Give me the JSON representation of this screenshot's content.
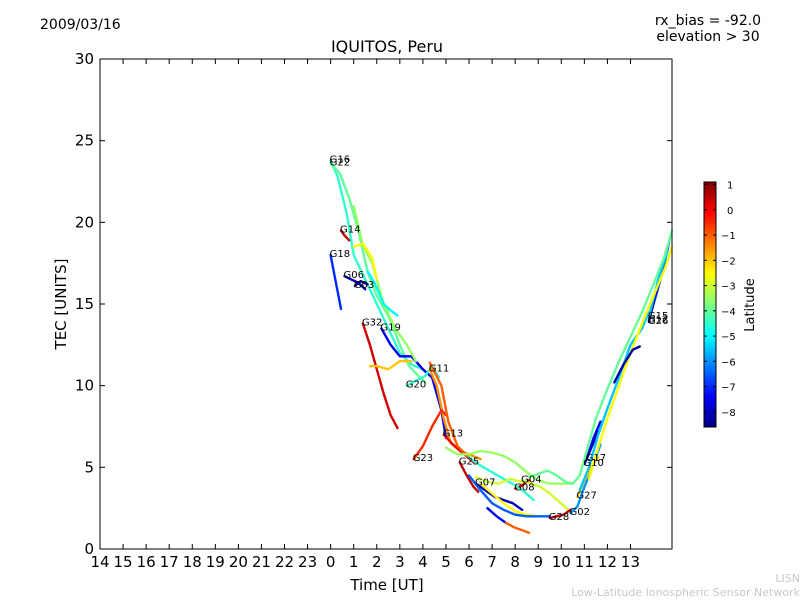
{
  "header": {
    "date": "2009/03/16",
    "rx_bias": "rx_bias = -92.0",
    "elevation": "elevation > 30"
  },
  "footer": {
    "line1": "LISN",
    "line2": "Low-Latitude Ionospheric Sensor Network"
  },
  "chart_data": {
    "type": "line",
    "title": "IQUITOS, Peru",
    "xlabel": "Time [UT]",
    "ylabel": "TEC [UNITS]",
    "x_tick_labels": [
      "14",
      "15",
      "16",
      "17",
      "18",
      "19",
      "20",
      "21",
      "22",
      "23",
      "0",
      "1",
      "2",
      "3",
      "4",
      "5",
      "6",
      "7",
      "8",
      "9",
      "10",
      "11",
      "12",
      "13"
    ],
    "xlim": [
      -10,
      14.8
    ],
    "ylim": [
      0,
      30
    ],
    "y_ticks": [
      0,
      5,
      10,
      15,
      20,
      25,
      30
    ],
    "grid": false,
    "colorbar": {
      "label": "Latitude",
      "range": [
        -8.6,
        1.1
      ],
      "ticks": [
        1,
        0,
        -1,
        -2,
        -3,
        -4,
        -5,
        -6,
        -7,
        -8
      ],
      "colormap": [
        "#00007f",
        "#0000ff",
        "#007fff",
        "#00ffff",
        "#7fff7f",
        "#ffff00",
        "#ff7f00",
        "#ff0000",
        "#7f0000"
      ]
    },
    "series": [
      {
        "name": "G16",
        "lat": -4.5,
        "points": [
          [
            0.0,
            23.8
          ],
          [
            0.3,
            22.8
          ],
          [
            0.7,
            20.5
          ],
          [
            1.0,
            18.0
          ],
          [
            1.5,
            16.5
          ],
          [
            2.0,
            15.0
          ],
          [
            2.5,
            13.5
          ],
          [
            3.0,
            12.0
          ],
          [
            3.5,
            11.3
          ],
          [
            4.0,
            11.0
          ]
        ]
      },
      {
        "name": "G22",
        "lat": -4.0,
        "points": [
          [
            0.0,
            23.6
          ],
          [
            0.4,
            23.0
          ],
          [
            0.8,
            21.5
          ],
          [
            1.2,
            19.5
          ],
          [
            1.6,
            17.0
          ],
          [
            2.0,
            15.5
          ],
          [
            2.6,
            14.0
          ],
          [
            3.0,
            12.5
          ],
          [
            3.4,
            11.2
          ],
          [
            3.8,
            10.6
          ],
          [
            4.1,
            10.2
          ]
        ]
      },
      {
        "name": "G14",
        "lat": 0.5,
        "points": [
          [
            0.45,
            19.5
          ],
          [
            0.6,
            19.2
          ],
          [
            0.8,
            18.9
          ]
        ]
      },
      {
        "name": "G18",
        "lat": -7.0,
        "points": [
          [
            0.0,
            18.0
          ],
          [
            0.2,
            16.5
          ],
          [
            0.45,
            14.7
          ]
        ]
      },
      {
        "name": "G06",
        "lat": -8.0,
        "points": [
          [
            0.6,
            16.7
          ],
          [
            0.9,
            16.5
          ],
          [
            1.2,
            16.3
          ],
          [
            1.5,
            15.9
          ]
        ]
      },
      {
        "name": "G03",
        "lat": -8.3,
        "points": [
          [
            1.05,
            16.1
          ],
          [
            1.3,
            16.4
          ],
          [
            1.6,
            16.2
          ]
        ]
      },
      {
        "name": "G32",
        "lat": 0.3,
        "points": [
          [
            1.4,
            13.8
          ],
          [
            1.7,
            12.5
          ],
          [
            2.0,
            11.0
          ],
          [
            2.3,
            9.5
          ],
          [
            2.6,
            8.2
          ],
          [
            2.9,
            7.4
          ]
        ]
      },
      {
        "name": "G19",
        "lat": -7.5,
        "points": [
          [
            2.2,
            13.5
          ],
          [
            2.6,
            12.5
          ],
          [
            3.0,
            11.8
          ],
          [
            3.5,
            11.8
          ],
          [
            4.0,
            11.0
          ],
          [
            4.4,
            10.5
          ],
          [
            4.8,
            8.5
          ],
          [
            5.0,
            6.8
          ]
        ]
      },
      {
        "name": "G20",
        "lat": -4.5,
        "points": [
          [
            3.3,
            10.0
          ],
          [
            3.7,
            10.3
          ],
          [
            4.1,
            10.6
          ],
          [
            4.4,
            11.2
          ],
          [
            4.7,
            10.5
          ]
        ]
      },
      {
        "name": "G11",
        "lat": -1.5,
        "points": [
          [
            4.3,
            11.0
          ],
          [
            4.6,
            10.0
          ],
          [
            4.9,
            8.0
          ],
          [
            5.2,
            6.5
          ],
          [
            5.6,
            6.0
          ],
          [
            6.0,
            5.8
          ],
          [
            6.5,
            5.5
          ]
        ]
      },
      {
        "name": "G13",
        "lat": 0.0,
        "points": [
          [
            4.9,
            7.0
          ],
          [
            5.3,
            6.4
          ],
          [
            5.8,
            5.8
          ],
          [
            6.2,
            5.3
          ]
        ]
      },
      {
        "name": "G23",
        "lat": -0.5,
        "points": [
          [
            3.6,
            5.5
          ],
          [
            4.0,
            6.3
          ],
          [
            4.4,
            7.5
          ],
          [
            4.8,
            8.5
          ],
          [
            5.0,
            8.2
          ]
        ]
      },
      {
        "name": "G25",
        "lat": 0.5,
        "points": [
          [
            5.6,
            5.3
          ],
          [
            5.9,
            4.5
          ],
          [
            6.2,
            3.8
          ],
          [
            6.4,
            3.5
          ]
        ]
      },
      {
        "name": "G07",
        "lat": -8.0,
        "points": [
          [
            6.3,
            4.0
          ],
          [
            6.7,
            3.6
          ],
          [
            7.1,
            3.2
          ],
          [
            7.5,
            3.0
          ],
          [
            7.9,
            2.8
          ],
          [
            8.3,
            2.4
          ]
        ]
      },
      {
        "name": "G08",
        "lat": 0.5,
        "points": [
          [
            8.0,
            3.7
          ],
          [
            8.3,
            3.9
          ],
          [
            8.6,
            4.2
          ]
        ]
      },
      {
        "name": "G04",
        "lat": -3.0,
        "points": [
          [
            8.3,
            4.2
          ],
          [
            8.7,
            4.0
          ],
          [
            9.1,
            3.8
          ],
          [
            9.5,
            3.4
          ],
          [
            9.9,
            2.9
          ],
          [
            10.3,
            2.4
          ]
        ]
      },
      {
        "name": "G28",
        "lat": 0.5,
        "points": [
          [
            9.5,
            1.9
          ],
          [
            9.8,
            2.0
          ],
          [
            10.1,
            2.1
          ],
          [
            10.4,
            2.4
          ]
        ]
      },
      {
        "name": "G02",
        "lat": -6.0,
        "points": [
          [
            10.4,
            2.2
          ],
          [
            10.7,
            2.6
          ],
          [
            11.0,
            3.8
          ],
          [
            11.4,
            5.2
          ],
          [
            11.7,
            6.4
          ]
        ]
      },
      {
        "name": "G27",
        "lat": -2.0,
        "points": [
          [
            10.7,
            3.2
          ],
          [
            11.0,
            4.2
          ],
          [
            11.3,
            5.0
          ],
          [
            11.6,
            5.6
          ]
        ]
      },
      {
        "name": "G17",
        "lat": -7.5,
        "points": [
          [
            11.1,
            5.5
          ],
          [
            11.4,
            6.8
          ],
          [
            11.7,
            7.8
          ]
        ]
      },
      {
        "name": "G10",
        "lat": -8.0,
        "points": [
          [
            11.0,
            5.2
          ],
          [
            11.3,
            6.2
          ],
          [
            11.6,
            7.2
          ]
        ]
      },
      {
        "name": "G12",
        "lat": -7.0,
        "points": [
          [
            13.8,
            14.0
          ],
          [
            14.1,
            15.5
          ],
          [
            14.4,
            17.0
          ],
          [
            14.7,
            19.0
          ]
        ]
      },
      {
        "name": "G26",
        "lat": -8.5,
        "points": [
          [
            13.8,
            13.9
          ],
          [
            14.1,
            15.8
          ],
          [
            14.4,
            17.5
          ],
          [
            14.6,
            18.5
          ]
        ]
      },
      {
        "name": "G15",
        "lat": -5.5,
        "points": [
          [
            13.8,
            14.2
          ],
          [
            14.2,
            16.5
          ],
          [
            14.6,
            18.2
          ]
        ]
      },
      {
        "name": "",
        "lat": -3.5,
        "points": [
          [
            1.0,
            21.0
          ],
          [
            1.4,
            18.6
          ],
          [
            1.8,
            17.5
          ],
          [
            2.3,
            15.0
          ],
          [
            2.8,
            13.5
          ],
          [
            3.3,
            12.5
          ],
          [
            3.7,
            11.5
          ]
        ]
      },
      {
        "name": "",
        "lat": -2.5,
        "points": [
          [
            1.0,
            18.5
          ],
          [
            1.4,
            18.7
          ],
          [
            1.8,
            17.8
          ],
          [
            2.0,
            16.5
          ]
        ]
      },
      {
        "name": "",
        "lat": -5.0,
        "points": [
          [
            1.6,
            17.0
          ],
          [
            1.9,
            16.3
          ],
          [
            2.3,
            15.0
          ],
          [
            2.6,
            14.6
          ],
          [
            2.9,
            14.3
          ]
        ]
      },
      {
        "name": "",
        "lat": -2.0,
        "points": [
          [
            1.7,
            11.2
          ],
          [
            2.0,
            11.2
          ],
          [
            2.5,
            11.0
          ],
          [
            3.0,
            11.5
          ],
          [
            3.5,
            11.5
          ]
        ]
      },
      {
        "name": "",
        "lat": -1.0,
        "points": [
          [
            4.3,
            11.4
          ],
          [
            4.8,
            10.0
          ],
          [
            5.1,
            7.8
          ],
          [
            5.5,
            6.3
          ],
          [
            6.0,
            5.6
          ]
        ]
      },
      {
        "name": "",
        "lat": -3.5,
        "points": [
          [
            5.0,
            6.2
          ],
          [
            5.5,
            5.8
          ],
          [
            6.0,
            5.8
          ],
          [
            6.5,
            6.0
          ],
          [
            7.0,
            5.9
          ],
          [
            7.5,
            5.7
          ],
          [
            8.0,
            5.3
          ],
          [
            8.5,
            4.7
          ],
          [
            9.0,
            4.2
          ],
          [
            9.5,
            4.0
          ],
          [
            10.0,
            4.0
          ],
          [
            10.4,
            4.0
          ]
        ]
      },
      {
        "name": "",
        "lat": -4.5,
        "points": [
          [
            6.0,
            5.6
          ],
          [
            6.5,
            5.1
          ],
          [
            7.0,
            4.7
          ],
          [
            7.5,
            4.3
          ],
          [
            8.0,
            3.9
          ],
          [
            8.4,
            3.5
          ],
          [
            8.8,
            3.0
          ]
        ]
      },
      {
        "name": "",
        "lat": -4.0,
        "points": [
          [
            8.6,
            4.4
          ],
          [
            9.0,
            4.6
          ],
          [
            9.4,
            4.8
          ],
          [
            9.8,
            4.5
          ],
          [
            10.2,
            4.1
          ],
          [
            10.5,
            4.0
          ],
          [
            10.8,
            4.5
          ],
          [
            11.1,
            6.0
          ],
          [
            11.5,
            8.0
          ],
          [
            12.0,
            9.8
          ],
          [
            12.5,
            11.5
          ],
          [
            13.0,
            13.0
          ],
          [
            13.5,
            14.5
          ],
          [
            14.0,
            16.2
          ],
          [
            14.5,
            18.0
          ],
          [
            14.8,
            19.5
          ]
        ]
      },
      {
        "name": "",
        "lat": -3.0,
        "points": [
          [
            6.3,
            4.4
          ],
          [
            6.8,
            4.1
          ],
          [
            7.3,
            4.0
          ],
          [
            7.8,
            4.3
          ],
          [
            8.3,
            4.1
          ]
        ]
      },
      {
        "name": "",
        "lat": -2.5,
        "points": [
          [
            6.5,
            4.0
          ],
          [
            7.0,
            3.4
          ],
          [
            7.5,
            2.8
          ],
          [
            8.0,
            2.3
          ],
          [
            8.5,
            2.1
          ],
          [
            9.0,
            2.0
          ],
          [
            9.5,
            2.0
          ]
        ]
      },
      {
        "name": "",
        "lat": -6.5,
        "points": [
          [
            6.0,
            4.5
          ],
          [
            6.5,
            3.6
          ],
          [
            7.0,
            2.8
          ],
          [
            7.5,
            2.4
          ],
          [
            8.0,
            2.1
          ],
          [
            8.5,
            2.0
          ],
          [
            9.0,
            2.0
          ],
          [
            9.5,
            2.0
          ]
        ]
      },
      {
        "name": "",
        "lat": -7.5,
        "points": [
          [
            6.8,
            2.5
          ],
          [
            7.2,
            2.0
          ],
          [
            7.6,
            1.6
          ]
        ]
      },
      {
        "name": "",
        "lat": -1.0,
        "points": [
          [
            7.6,
            1.6
          ],
          [
            8.0,
            1.3
          ],
          [
            8.4,
            1.1
          ],
          [
            8.6,
            1.0
          ]
        ]
      },
      {
        "name": "",
        "lat": -5.5,
        "points": [
          [
            10.8,
            3.6
          ],
          [
            11.2,
            5.0
          ],
          [
            11.6,
            7.0
          ],
          [
            12.0,
            8.6
          ],
          [
            12.5,
            10.5
          ],
          [
            13.0,
            12.5
          ],
          [
            13.5,
            13.5
          ],
          [
            13.8,
            14.5
          ]
        ]
      },
      {
        "name": "",
        "lat": -2.5,
        "points": [
          [
            11.2,
            4.3
          ],
          [
            11.6,
            6.2
          ],
          [
            12.0,
            8.0
          ],
          [
            12.5,
            10.0
          ],
          [
            13.0,
            12.0
          ],
          [
            13.5,
            13.8
          ],
          [
            14.0,
            15.5
          ],
          [
            14.5,
            17.2
          ],
          [
            14.8,
            18.5
          ]
        ]
      },
      {
        "name": "",
        "lat": -8.2,
        "points": [
          [
            12.3,
            10.2
          ],
          [
            12.7,
            11.3
          ],
          [
            13.1,
            12.2
          ],
          [
            13.4,
            12.4
          ]
        ]
      }
    ]
  }
}
